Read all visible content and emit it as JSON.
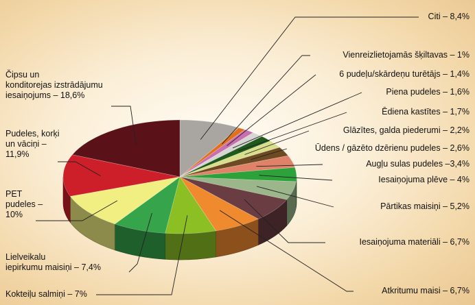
{
  "chart_data": {
    "type": "pie",
    "title": "",
    "slices": [
      {
        "label": "Citi – 8,4%",
        "value": 8.4,
        "color": "#a9a6a2"
      },
      {
        "label": "Vienreizlietojamās šķiltavas – 1%",
        "value": 1.0,
        "color": "#e0701c"
      },
      {
        "label": "6 pudeļu/skārdeņu turētājs – 1,4%",
        "value": 1.4,
        "color": "#c86fb2"
      },
      {
        "label": "Piena pudeles – 1,6%",
        "value": 1.6,
        "color": "#d8d6d2"
      },
      {
        "label": "Ēdiena kastītes – 1,7%",
        "value": 1.7,
        "color": "#1f5a1c"
      },
      {
        "label": "Glāzītes, galda piederumi – 2,2%",
        "value": 2.2,
        "color": "#d9de8c"
      },
      {
        "label": "Ūdens / gāzēto dzērienu pudeles – 2,6%",
        "value": 2.6,
        "color": "#6d4a22"
      },
      {
        "label": "Augļu sulas pudeles –3,4%",
        "value": 3.4,
        "color": "#e08268"
      },
      {
        "label": "Iesaiņojuma plēve – 4%",
        "value": 4.0,
        "color": "#2ea23a"
      },
      {
        "label": "Pārtikas maisiņi – 5,2%",
        "value": 5.2,
        "color": "#9bb68a"
      },
      {
        "label": "Iesaiņojuma materiāli – 6,7%",
        "value": 6.7,
        "color": "#6a3d42"
      },
      {
        "label": "Atkritumu maisi – 6,7%",
        "value": 6.7,
        "color": "#ef8a2e"
      },
      {
        "label": "Kokteiļu salmiņi – 7%",
        "value": 7.0,
        "color": "#8cbf24"
      },
      {
        "label": "Lielveikalu iepirkumu maisiņi – 7,4%",
        "value": 7.4,
        "color": "#36a44a"
      },
      {
        "label": "PET pudeles – 10%",
        "value": 10.0,
        "color": "#f1ef82"
      },
      {
        "label": "Pudeles, korķi un vāciņi – 11,9%",
        "value": 11.9,
        "color": "#cc1f2a"
      },
      {
        "label": "Čipsu un konditorejas izstrādājumu iesaiņojums – 18,6%",
        "value": 18.6,
        "color": "#5a1218"
      }
    ]
  },
  "labels": {
    "citi": "Citi – 8,4%",
    "skiltavas": "Vienreizlietojamās šķiltavas – 1%",
    "turetajs": "6 pudeļu/skārdeņu turētājs – 1,4%",
    "piena": "Piena pudeles – 1,6%",
    "ediena": "Ēdiena kastītes – 1,7%",
    "glazites": "Glāzītes, galda piederumi – 2,2%",
    "udens": "Ūdens / gāzēto dzērienu pudeles – 2,6%",
    "augLu": "Augļu sulas pudeles –3,4%",
    "plеve": "Iesaiņojuma plēve – 4%",
    "partikas": "Pārtikas maisiņi – 5,2%",
    "materiali": "Iesaiņojuma materiāli – 6,7%",
    "atkritumu": "Atkritumu maisi – 6,7%",
    "kokteilu": "Kokteiļu salmiņi – 7%",
    "lielveikalu": "Lielveikalu\niepirkumu maisiņi – 7,4%",
    "pet": "PET\npudeles –\n10%",
    "pudeles": "Pudeles, korķi\nun vāciņi –\n11,9%",
    "cipsu": "Čipsu un\nkonditorejas izstrādājumu\niesaiņojums – 18,6%"
  }
}
